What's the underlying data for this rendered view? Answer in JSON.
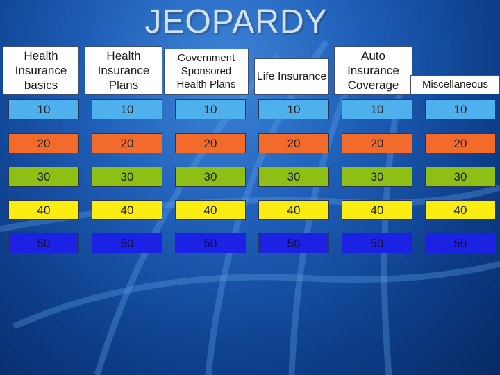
{
  "title": "JEOPARDY",
  "categories": [
    "Health Insurance basics",
    "Health Insurance Plans",
    "Government Sponsored Health Plans",
    "Life Insurance",
    "Auto Insurance Coverage",
    "Miscellaneous"
  ],
  "point_values": [
    "10",
    "20",
    "30",
    "40",
    "50"
  ],
  "row_colors": [
    "#4fb0ee",
    "#f26b2a",
    "#8dbf14",
    "#fbec12",
    "#1b22e3"
  ]
}
